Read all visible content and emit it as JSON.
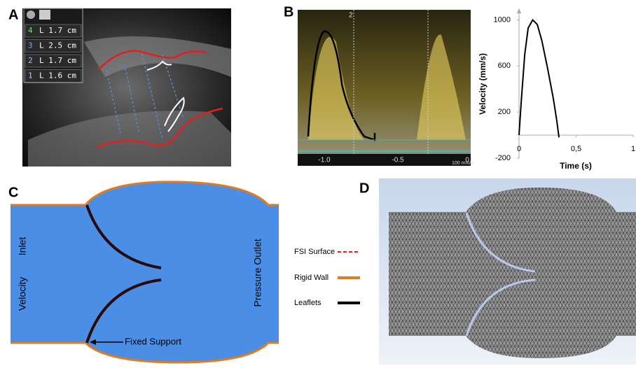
{
  "panel_a": {
    "label": "A",
    "measurements": [
      {
        "index": "4",
        "text": "L 1.7 cm"
      },
      {
        "index": "3",
        "text": "L 2.5 cm"
      },
      {
        "index": "2",
        "text": "L 1.7 cm"
      },
      {
        "index": "1",
        "text": "L 1.6 cm"
      }
    ]
  },
  "panel_b": {
    "label": "B",
    "doppler": {
      "marker": "2",
      "axis_labels": [
        "-1.0",
        "-0.5",
        "0"
      ],
      "scale": "100 mm/s"
    },
    "chart_data": {
      "type": "line",
      "x_label": "Time (s)",
      "y_label": "Velocity (mm/s)",
      "x": [
        0,
        0.02,
        0.05,
        0.08,
        0.12,
        0.16,
        0.2,
        0.25,
        0.3,
        0.33,
        0.35
      ],
      "values": [
        0,
        300,
        700,
        930,
        1000,
        960,
        820,
        580,
        320,
        130,
        -20
      ],
      "color": "#000000",
      "xlim": [
        0,
        1
      ],
      "ylim": [
        -200,
        1100
      ],
      "xticks": [
        0,
        {
          "value": 0.5,
          "label": "0,5"
        },
        1
      ],
      "yticks": [
        -200,
        200,
        600,
        1000
      ]
    }
  },
  "panel_c": {
    "label": "C",
    "inlet": "Inlet",
    "velocity": "Velocity",
    "outlet": "Pressure Outlet",
    "support": "Fixed Support",
    "legend": [
      "FSI Surface",
      "Rigid Wall",
      "Leaflets"
    ]
  },
  "panel_d": {
    "label": "D"
  }
}
